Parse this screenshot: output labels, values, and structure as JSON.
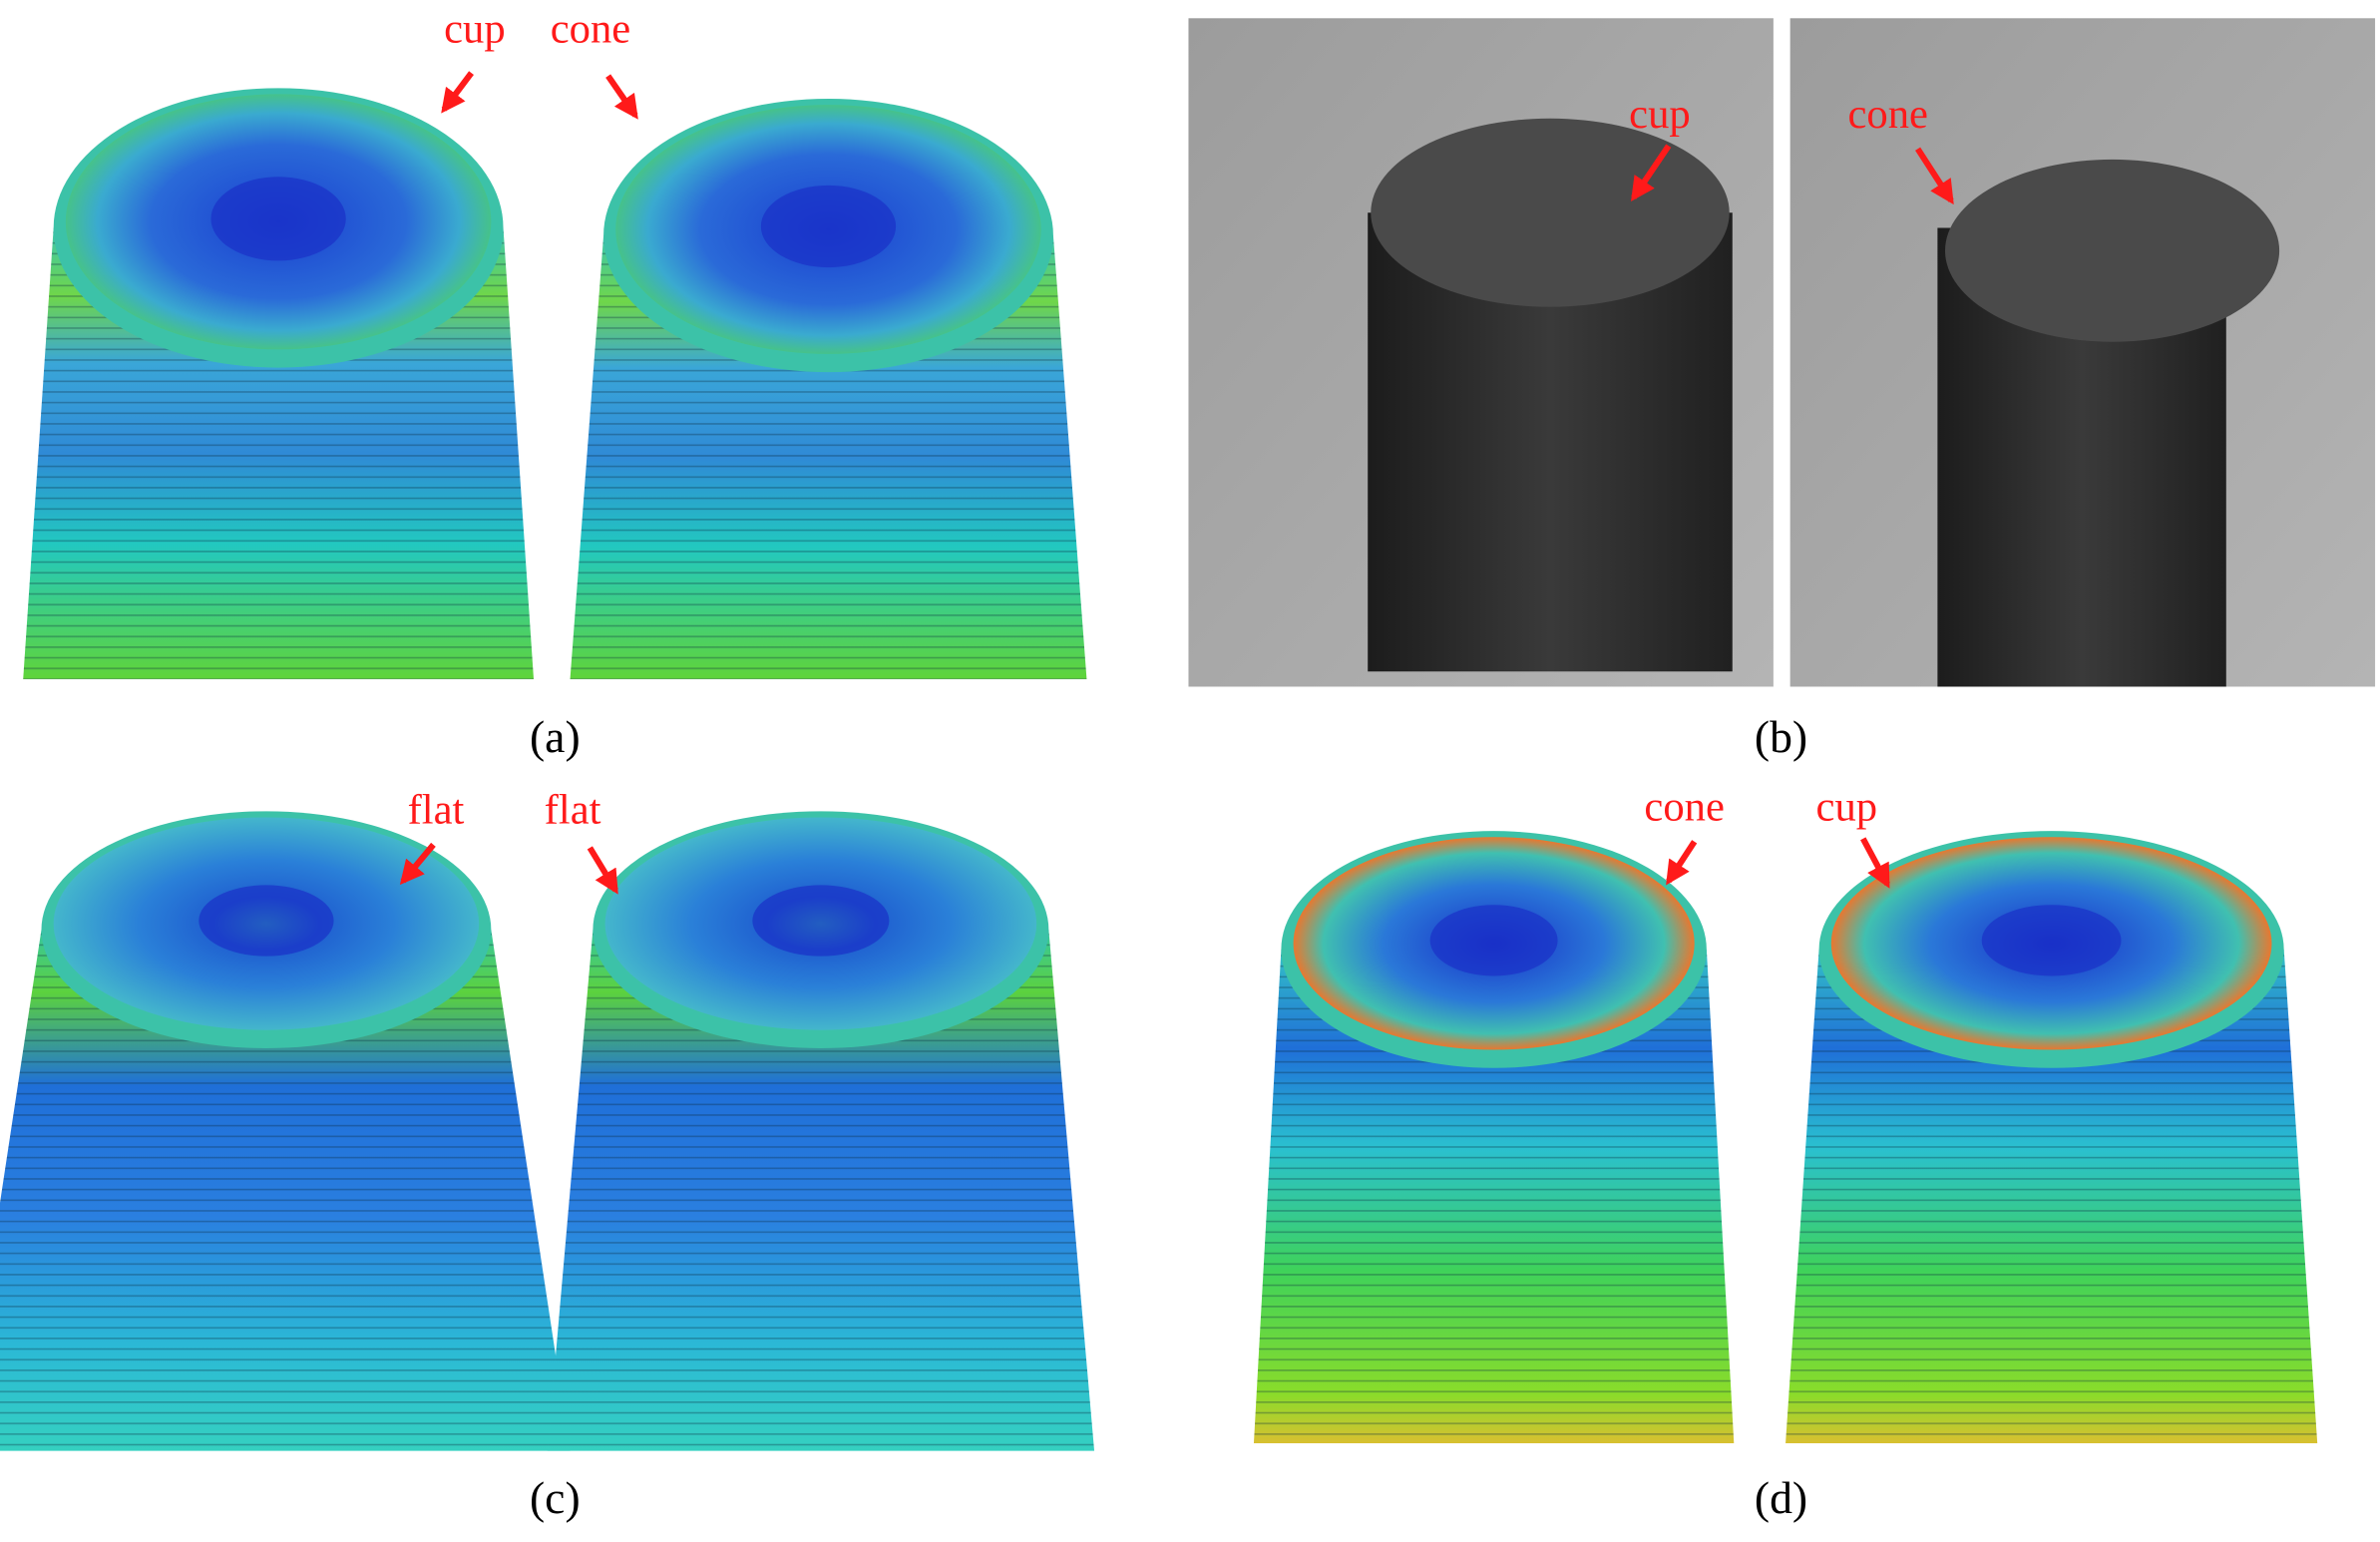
{
  "panels": [
    {
      "label": "(a)",
      "annotations": [
        "cup",
        "cone"
      ]
    },
    {
      "label": "(b)",
      "annotations": [
        "cup",
        "cone"
      ]
    },
    {
      "label": "(c)",
      "annotations": [
        "flat",
        "flat"
      ]
    },
    {
      "label": "(d)",
      "annotations": [
        "cone",
        "cup"
      ]
    }
  ]
}
